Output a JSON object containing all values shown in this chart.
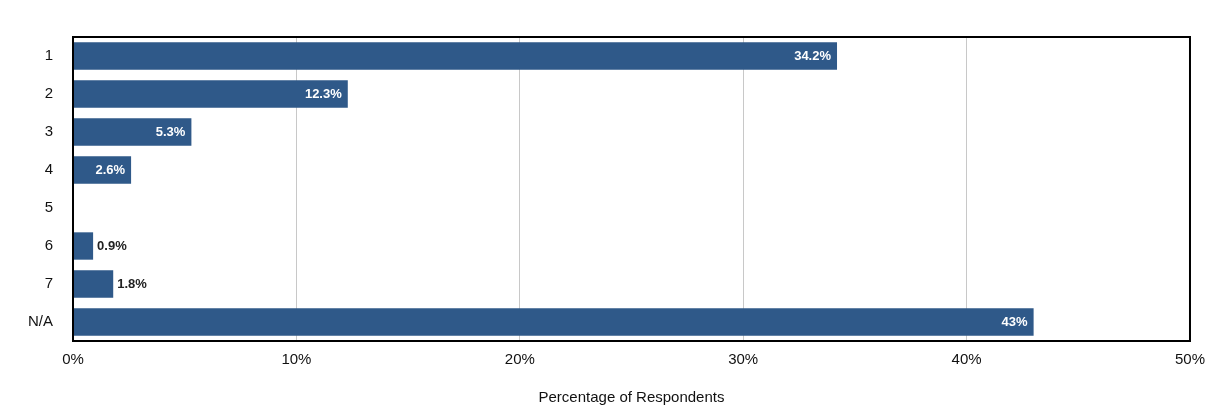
{
  "chart_data": {
    "type": "bar",
    "orientation": "horizontal",
    "xlabel": "Percentage of Respondents",
    "categories": [
      "1",
      "2",
      "3",
      "4",
      "5",
      "6",
      "7",
      "N/A"
    ],
    "values": [
      34.2,
      12.3,
      5.3,
      2.6,
      0,
      0.9,
      1.8,
      43
    ],
    "value_labels": [
      "34.2%",
      "12.3%",
      "5.3%",
      "2.6%",
      null,
      "0.9%",
      "1.8%",
      "43%"
    ],
    "color": "#2f5989",
    "xlim": [
      0,
      50
    ],
    "xticks": [
      {
        "value": 0,
        "label": "0%"
      },
      {
        "value": 10,
        "label": "10%"
      },
      {
        "value": 20,
        "label": "20%"
      },
      {
        "value": 30,
        "label": "30%"
      },
      {
        "value": 40,
        "label": "40%"
      },
      {
        "value": 50,
        "label": "50%"
      }
    ],
    "grid": "x",
    "legend": false
  }
}
